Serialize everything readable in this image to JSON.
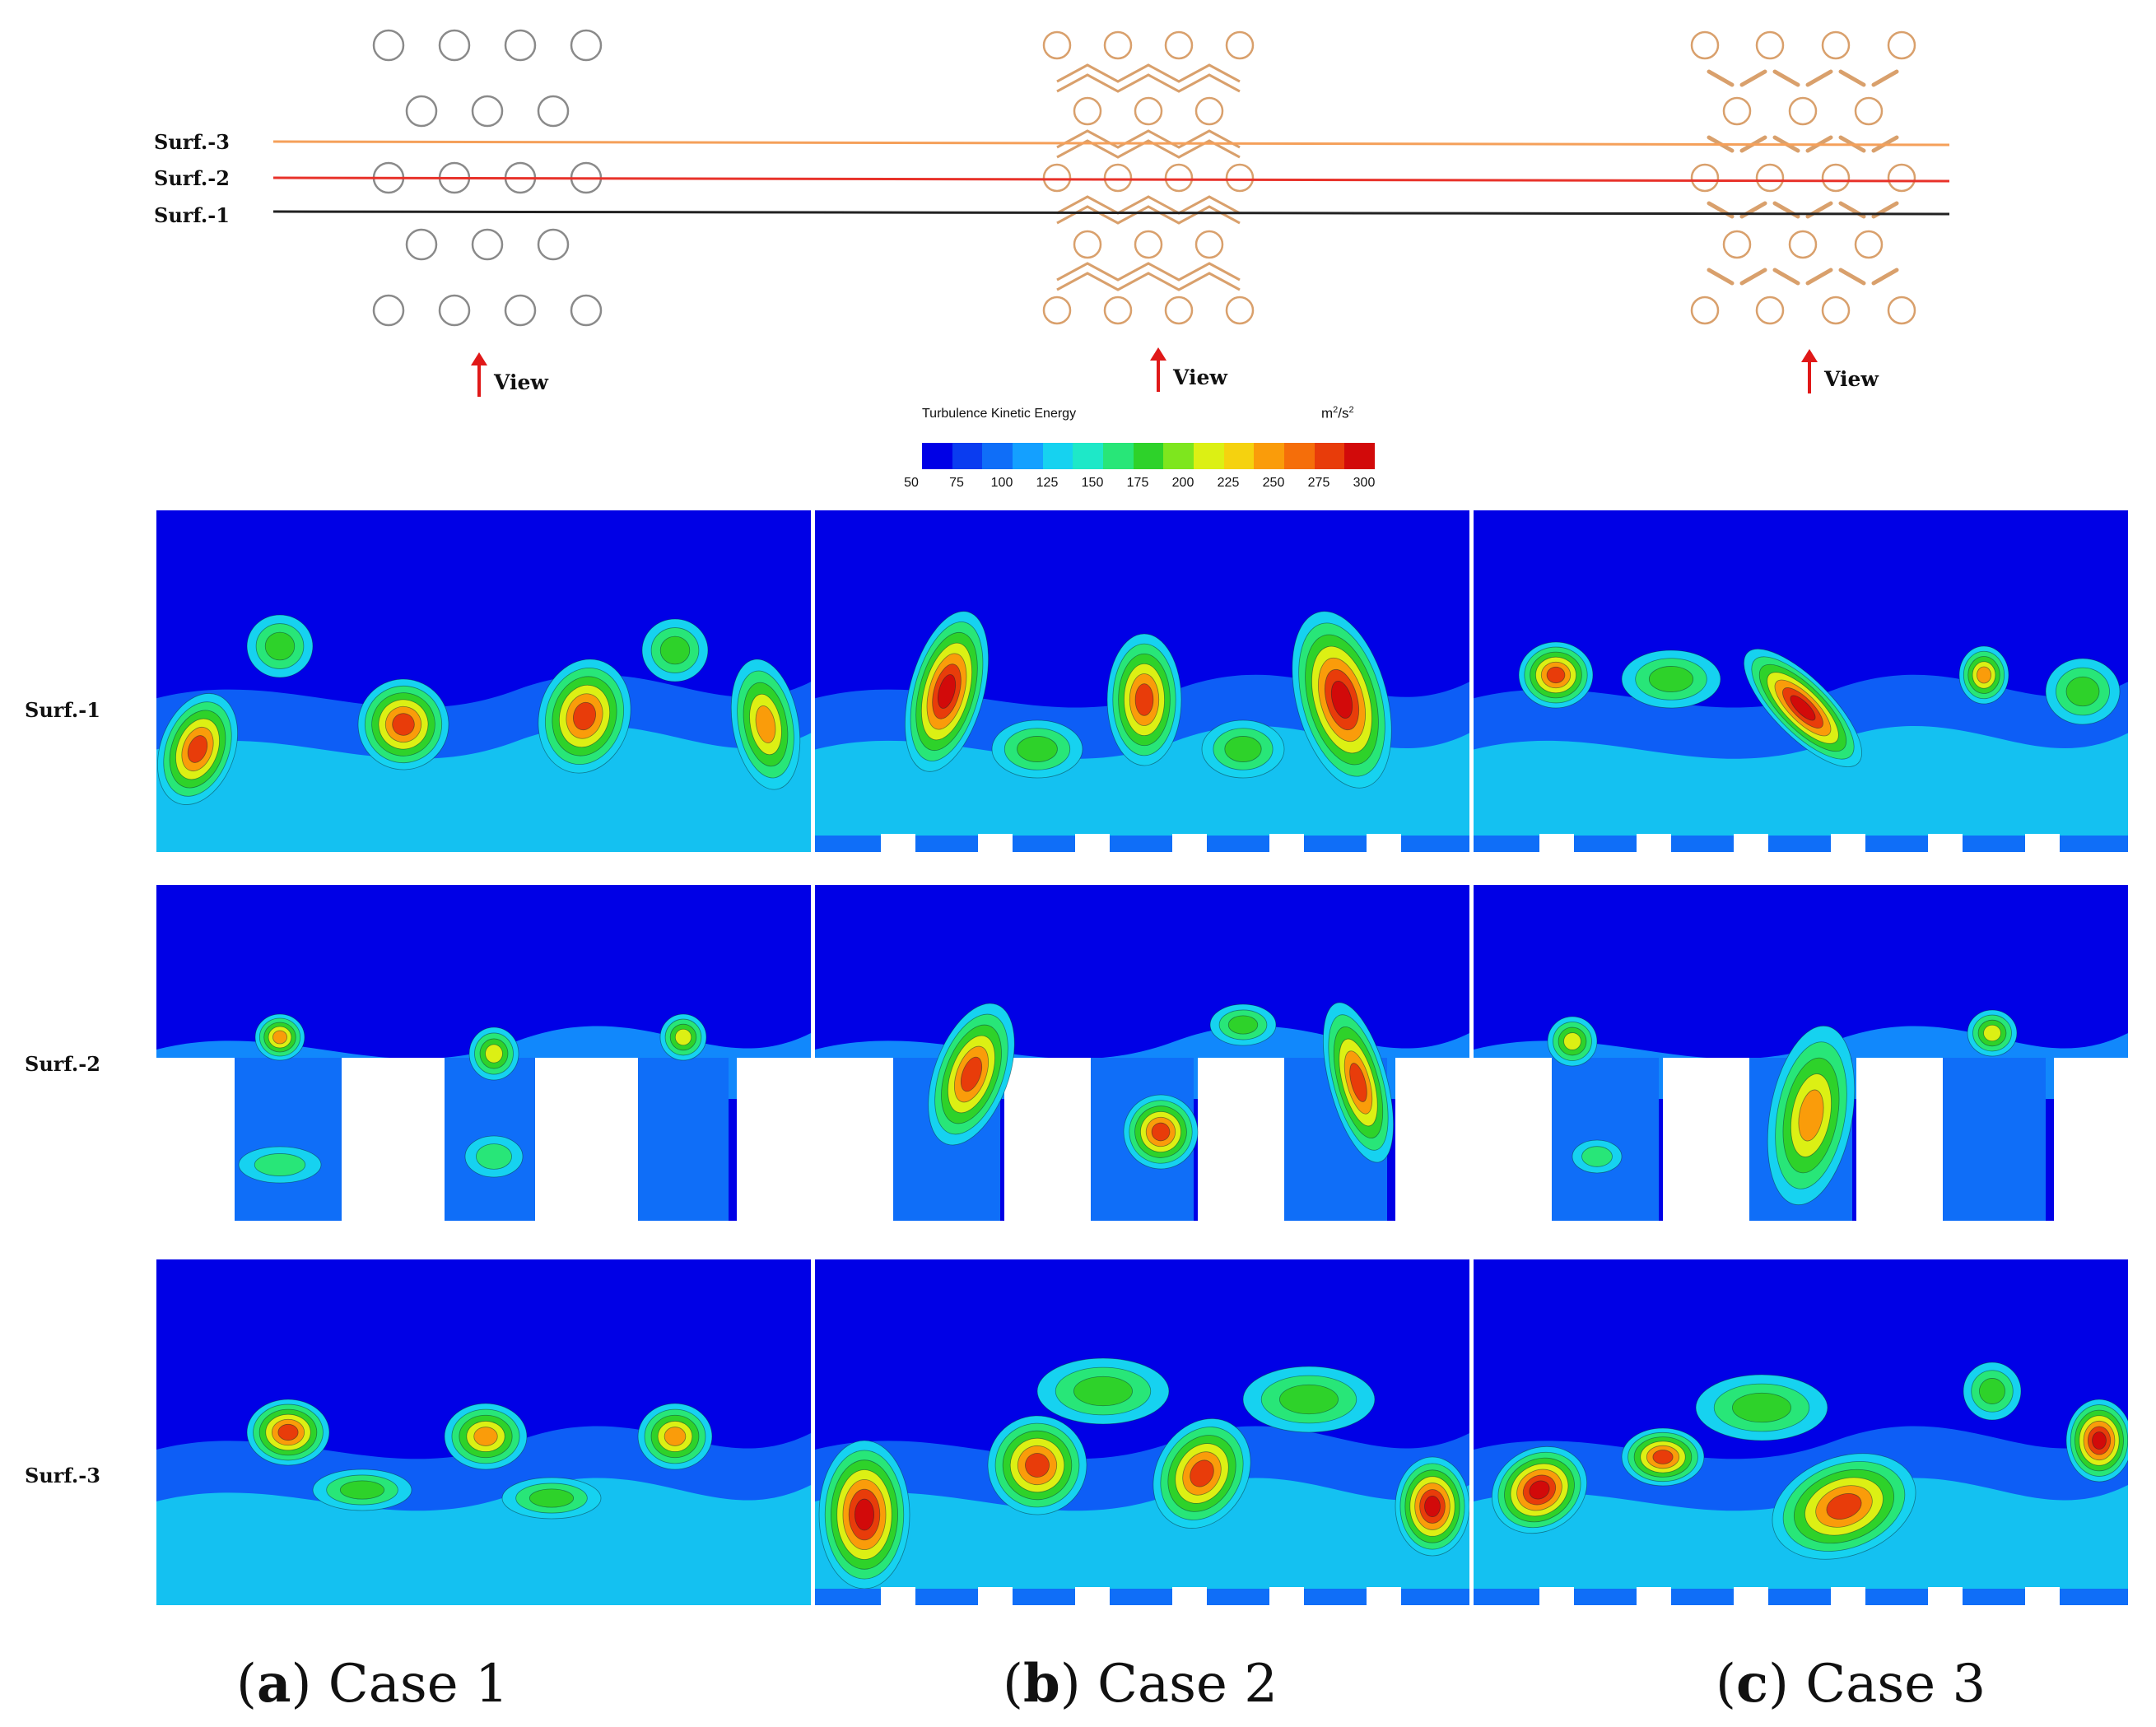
{
  "schematic": {
    "surface_labels": [
      "Surf.-3",
      "Surf.-2",
      "Surf.-1"
    ],
    "view_label": "View",
    "colors": {
      "surf3": "#f5a05a",
      "surf2": "#e8322a",
      "surf1": "#222222",
      "case1_tubes": "#8a8a8a",
      "case23_tubes": "#d9a06c",
      "arrow": "#e01818"
    }
  },
  "legend": {
    "title": "Turbulence Kinetic Energy",
    "unit_base": "m",
    "unit_sup1": "2",
    "unit_mid": "/s",
    "unit_sup2": "2",
    "ticks": [
      "50",
      "75",
      "100",
      "125",
      "150",
      "175",
      "200",
      "225",
      "250",
      "275",
      "300"
    ],
    "colors": [
      "#0000e6",
      "#0a3cf0",
      "#0f6ef8",
      "#14a0ff",
      "#16d2f0",
      "#1ee8c8",
      "#28e678",
      "#2ed22a",
      "#7ee61e",
      "#dcf014",
      "#f5d20f",
      "#fa9c0a",
      "#f56e0a",
      "#e83c0a",
      "#d20a0a"
    ]
  },
  "rows": [
    "Surf.-1",
    "Surf.-2",
    "Surf.-3"
  ],
  "cases": [
    {
      "letter": "a",
      "name": "Case 1"
    },
    {
      "letter": "b",
      "name": "Case 2"
    },
    {
      "letter": "c",
      "name": "Case 3"
    }
  ]
}
